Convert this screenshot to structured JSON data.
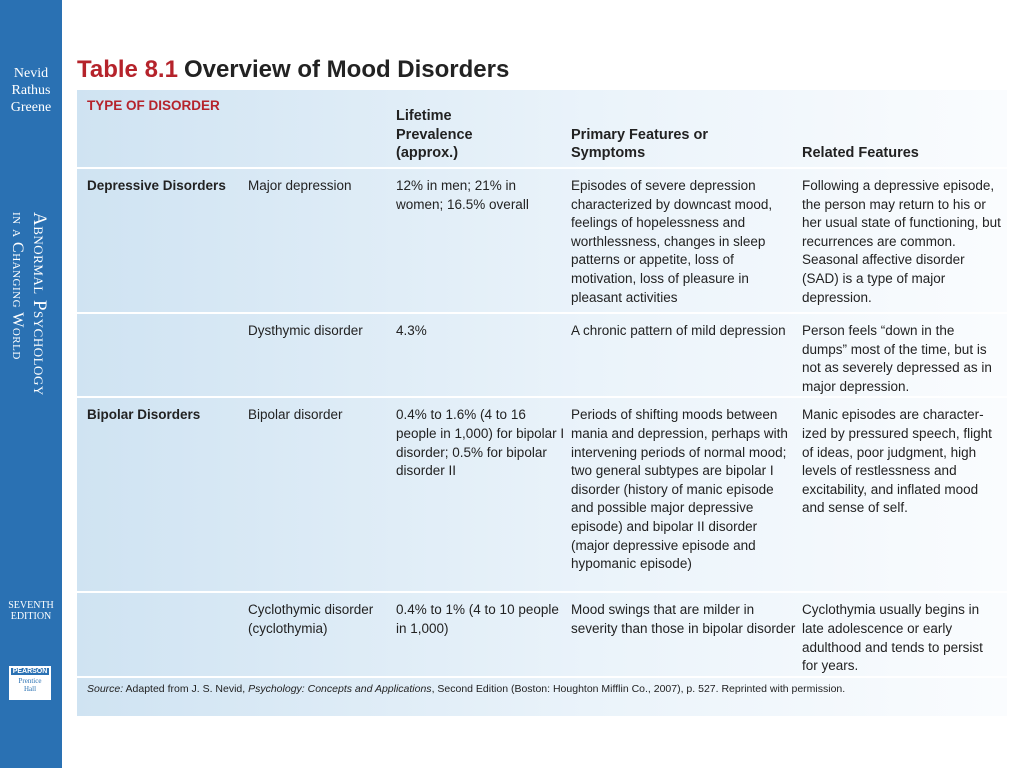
{
  "sidebar": {
    "authors": [
      "Nevid",
      "Rathus",
      "Greene"
    ],
    "book_title": [
      "Abnormal Psychology",
      "in a Changing World"
    ],
    "edition": [
      "Seventh",
      "Edition"
    ],
    "publisher": "PEARSON",
    "imprint": [
      "Prentice",
      "Hall"
    ]
  },
  "title": {
    "number": "Table 8.1",
    "text": "Overview of Mood Disorders"
  },
  "table": {
    "type_heading": "TYPE OF DISORDER",
    "columns": {
      "prevalence": "Lifetime Prevalence (approx.)",
      "features": "Primary Features or Symptoms",
      "related": "Related Features"
    },
    "groups": [
      {
        "name": "Depressive Disorders",
        "rows": [
          {
            "disorder": "Major depression",
            "prevalence": "12% in men; 21% in women; 16.5% overall",
            "features": "Episodes of severe depression characterized by downcast mood, feelings of hopelessness and worthlessness, changes in sleep patterns or appetite, loss of motivation, loss of pleasure in pleasant activities",
            "related": "Following a depressive episode, the person may return to his or her usual state of functioning, but recurrences are common. Seasonal affective disorder (SAD) is a type of major depression."
          },
          {
            "disorder": "Dysthymic disorder",
            "prevalence": "4.3%",
            "features": "A chronic pattern of mild depression",
            "related": "Person feels “down in the dumps” most of the time, but is not as severely depressed as in major depression."
          }
        ]
      },
      {
        "name": "Bipolar Disorders",
        "rows": [
          {
            "disorder": "Bipolar disorder",
            "prevalence": "0.4% to 1.6% (4 to 16 people in 1,000) for bipolar I disorder; 0.5% for bipolar disorder II",
            "features": "Periods of shifting moods between mania and depression, perhaps with intervening periods of normal mood; two general subtypes are bipolar I disorder (history of manic episode and possible major depressive episode) and bipolar II disorder (major depressive episode and hypomanic episode)",
            "related": "Manic episodes are character-ized by pressured speech, flight of ideas, poor judgment, high levels of restlessness and excitability, and inflated mood and sense of self."
          },
          {
            "disorder": "Cyclothymic disorder (cyclothymia)",
            "prevalence": "0.4% to 1% (4 to 10 people in 1,000)",
            "features": "Mood swings that are milder in severity than those in bipolar disorder",
            "related": "Cyclothymia usually begins in late adolescence or early adulthood and tends to persist for years."
          }
        ]
      }
    ]
  },
  "source": {
    "label": "Source:",
    "before": "Adapted from J. S. Nevid,",
    "work": "Psychology: Concepts and Applications",
    "after": ", Second Edition (Boston: Houghton Mifflin Co., 2007), p. 527. Reprinted with permission."
  }
}
